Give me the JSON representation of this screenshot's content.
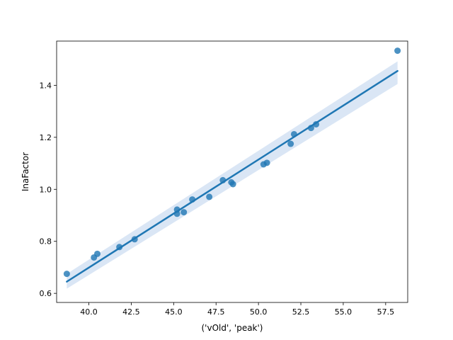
{
  "chart_data": {
    "type": "scatter",
    "title": "",
    "xlabel": "('vOld', 'peak')",
    "ylabel": "InaFactor",
    "xlim": [
      38.1,
      58.8
    ],
    "ylim": [
      0.565,
      1.57
    ],
    "x_ticks": [
      40.0,
      42.5,
      45.0,
      47.5,
      50.0,
      52.5,
      55.0,
      57.5
    ],
    "x_tick_labels": [
      "40.0",
      "42.5",
      "45.0",
      "47.5",
      "50.0",
      "52.5",
      "55.0",
      "57.5"
    ],
    "y_ticks": [
      0.6,
      0.8,
      1.0,
      1.2,
      1.4
    ],
    "y_tick_labels": [
      "0.6",
      "0.8",
      "1.0",
      "1.2",
      "1.4"
    ],
    "grid": false,
    "legend": "none",
    "series": [
      {
        "x": [
          38.7,
          40.3,
          40.5,
          41.8,
          42.7,
          45.2,
          45.2,
          45.6,
          46.1,
          47.1,
          47.9,
          48.4,
          48.5,
          50.3,
          50.5,
          51.9,
          52.1,
          53.1,
          53.4,
          58.2
        ],
        "y": [
          0.675,
          0.738,
          0.752,
          0.778,
          0.808,
          0.906,
          0.922,
          0.912,
          0.961,
          0.971,
          1.035,
          1.027,
          1.02,
          1.096,
          1.102,
          1.175,
          1.212,
          1.236,
          1.25,
          1.533
        ]
      }
    ],
    "regression": {
      "x": [
        38.7,
        58.2
      ],
      "y": [
        0.645,
        1.455
      ],
      "ci_upper": [
        0.675,
        1.492
      ],
      "ci_lower": [
        0.618,
        1.405
      ]
    },
    "colors": {
      "points": "#1f77b4",
      "line": "#1f77b4",
      "band": "#aec7e8"
    }
  }
}
